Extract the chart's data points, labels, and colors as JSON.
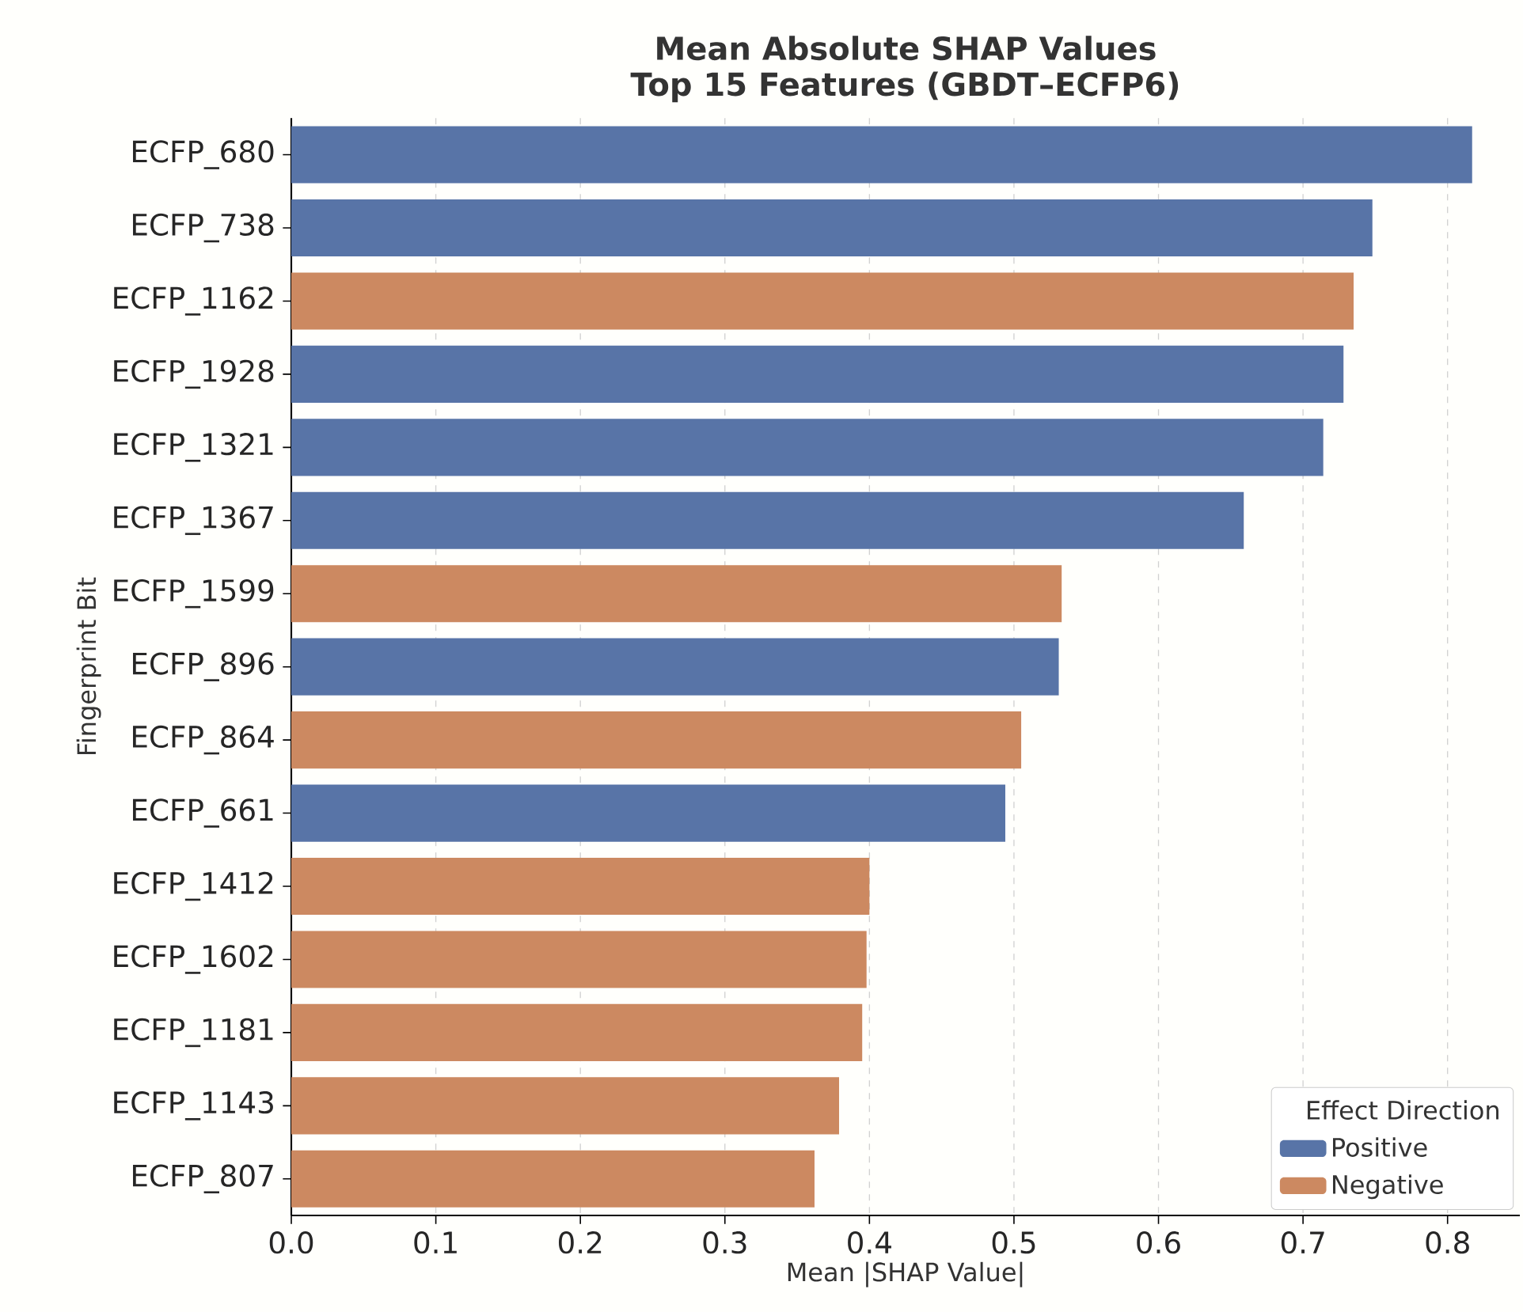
{
  "chart_data": {
    "type": "bar",
    "orientation": "horizontal",
    "title": "Mean Absolute SHAP Values",
    "subtitle": "Top 15 Features (GBDT–ECFP6)",
    "xlabel": "Mean |SHAP Value|",
    "ylabel": "Fingerprint Bit",
    "legend_title": "Effect Direction",
    "categories": [
      "ECFP_680",
      "ECFP_738",
      "ECFP_1162",
      "ECFP_1928",
      "ECFP_1321",
      "ECFP_1367",
      "ECFP_1599",
      "ECFP_896",
      "ECFP_864",
      "ECFP_661",
      "ECFP_1412",
      "ECFP_1602",
      "ECFP_1181",
      "ECFP_1143",
      "ECFP_807"
    ],
    "series": [
      {
        "name": "Positive",
        "color": "#5874a7",
        "values": [
          0.817,
          0.748,
          null,
          0.728,
          0.714,
          0.659,
          null,
          0.531,
          null,
          0.494,
          null,
          null,
          null,
          null,
          null
        ]
      },
      {
        "name": "Negative",
        "color": "#cc8961",
        "values": [
          null,
          null,
          0.735,
          null,
          null,
          null,
          0.533,
          null,
          0.505,
          null,
          0.4,
          0.398,
          0.395,
          0.379,
          0.362
        ]
      }
    ],
    "xlim": [
      0,
      0.85
    ],
    "xticks": [
      {
        "value": 0,
        "label": "0.0"
      },
      0.1,
      0.2,
      0.3,
      0.4,
      0.5,
      0.6,
      0.7,
      0.8
    ],
    "grid": "x",
    "legend": "bottom right"
  }
}
